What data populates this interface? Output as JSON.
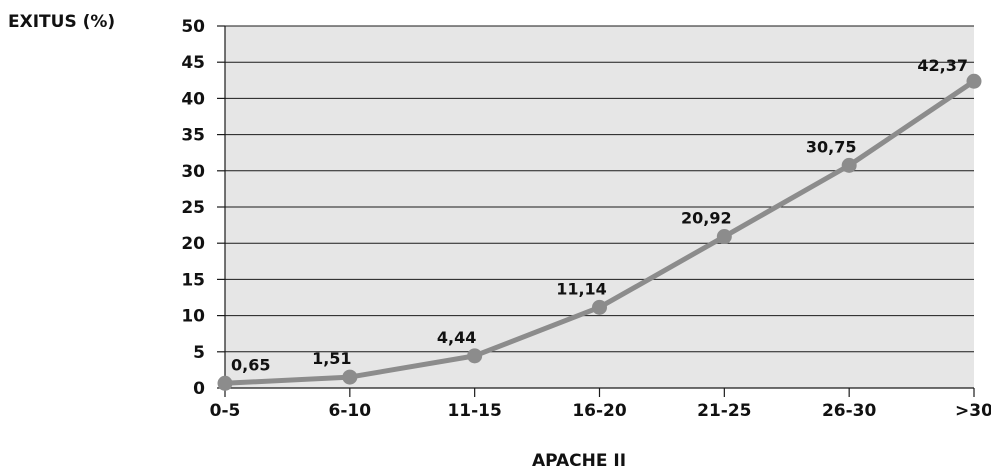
{
  "chart_data": {
    "type": "line",
    "ylabel": "EXITUS (%)",
    "xlabel": "APACHE II",
    "categories": [
      "0-5",
      "6-10",
      "11-15",
      "16-20",
      "21-25",
      "26-30",
      ">30"
    ],
    "values": [
      0.65,
      1.51,
      4.44,
      11.14,
      20.92,
      30.75,
      42.37
    ],
    "data_labels": [
      "0,65",
      "1,51",
      "4,44",
      "11,14",
      "20,92",
      "30,75",
      "42,37"
    ],
    "yticks": [
      "0",
      "5",
      "10",
      "15",
      "20",
      "25",
      "30",
      "35",
      "40",
      "45",
      "50"
    ],
    "ylim": [
      0,
      50
    ],
    "grid": true,
    "colors": {
      "plot_background": "#e6e6e6",
      "line": "#8c8c8c",
      "marker": "#8c8c8c",
      "gridline": "#1a1a1a",
      "text": "#111111"
    }
  }
}
